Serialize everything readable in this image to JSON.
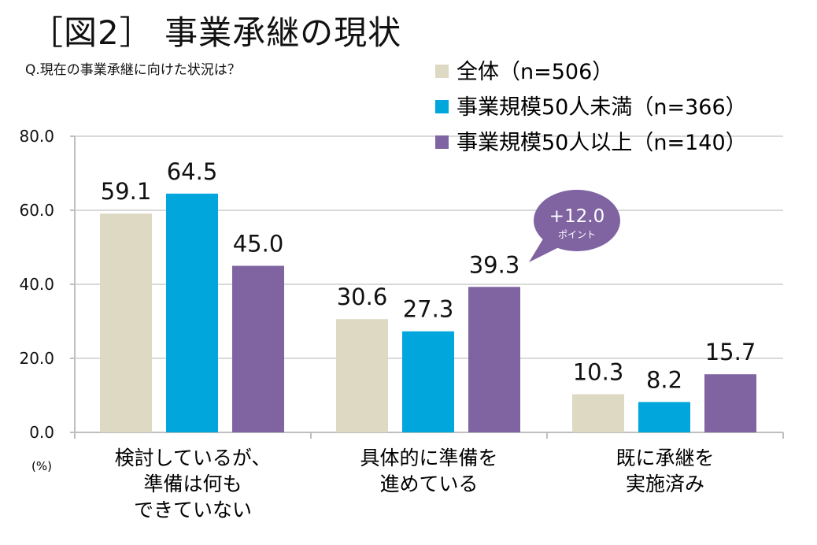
{
  "chart_data": {
    "type": "bar",
    "title": "［図2］ 事業承継の現状",
    "subtitle": "Q.現在の事業承継に向けた状況は？",
    "ylabel": "(%)",
    "ylim": [
      0,
      80
    ],
    "yticks": [
      "0.0",
      "20.0",
      "40.0",
      "60.0",
      "80.0"
    ],
    "grid": true,
    "legend_position": "top-right",
    "categories": [
      [
        "検討しているが、",
        "準備は何も",
        "できていない"
      ],
      [
        "具体的に準備を",
        "進めている"
      ],
      [
        "既に承継を",
        "実施済み"
      ]
    ],
    "series": [
      {
        "name": "全体（n=506）",
        "color": "#DDD9C3",
        "values": [
          59.1,
          30.6,
          10.3
        ]
      },
      {
        "name": "事業規模50人未満（n=366）",
        "color": "#00A6DC",
        "values": [
          64.5,
          27.3,
          8.2
        ]
      },
      {
        "name": "事業規模50人以上（n=140）",
        "color": "#8064A2",
        "values": [
          45.0,
          39.3,
          15.7
        ]
      }
    ],
    "callout": {
      "value": "+12.0",
      "unit": "ポイント",
      "color": "#8064A2"
    }
  }
}
